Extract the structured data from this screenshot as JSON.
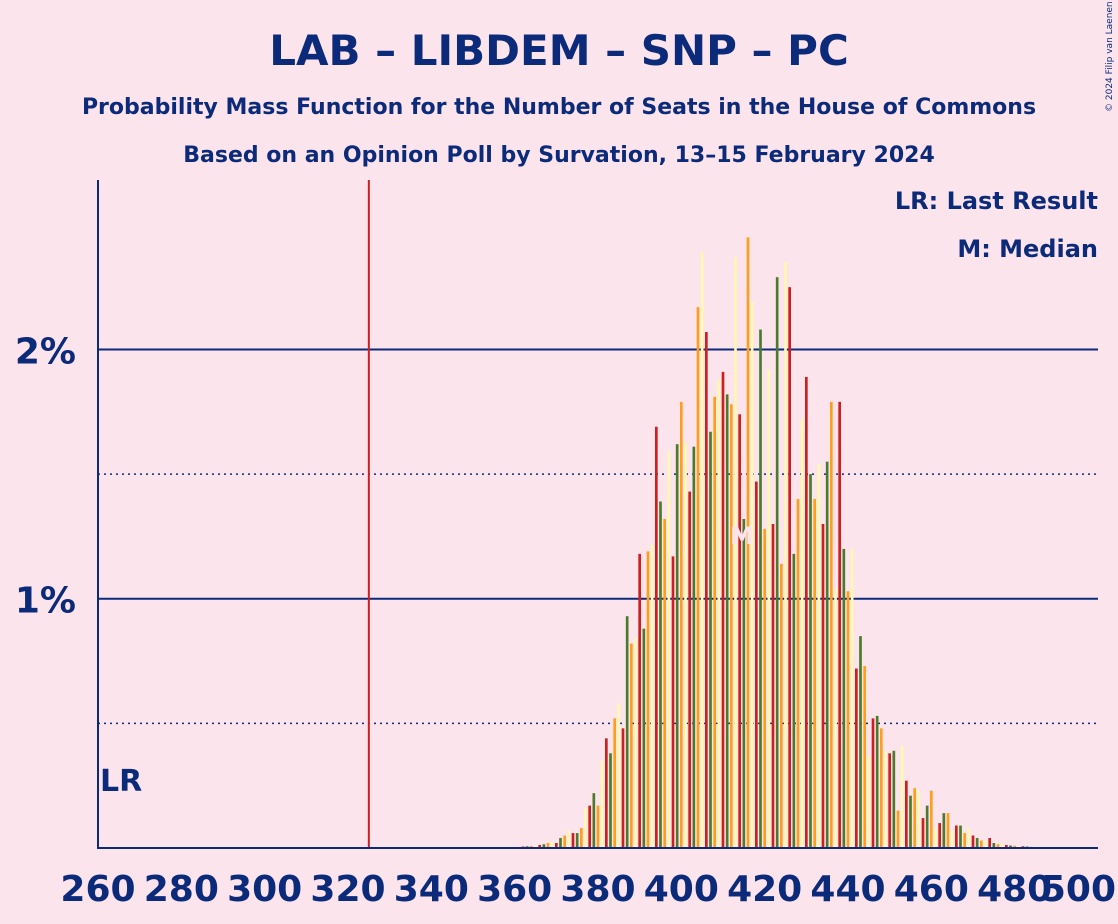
{
  "chart_data": {
    "type": "bar",
    "title": "LAB – LIBDEM – SNP – PC",
    "subtitle": "Probability Mass Function for the Number of Seats in the House of Commons",
    "subtitle2": "Based on an Opinion Poll by Survation, 13–15 February 2024",
    "copyright": "© 2024 Filip van Laenen",
    "xlim": [
      260,
      500
    ],
    "ylim": [
      0,
      2.68
    ],
    "x_ticks": [
      "260",
      "280",
      "300",
      "320",
      "340",
      "360",
      "380",
      "400",
      "420",
      "440",
      "460",
      "480",
      "500"
    ],
    "y_ticks": [
      {
        "value": 1,
        "label": "1%"
      },
      {
        "value": 2,
        "label": "2%"
      }
    ],
    "dotted_gridlines": [
      0.5,
      1.5
    ],
    "last_result": {
      "seats": 325,
      "label": "LR"
    },
    "median": {
      "seats": 416,
      "label": "M"
    },
    "legend": [
      "LR: Last Result",
      "M: Median"
    ],
    "bar_colors": [
      "#ff9e1b",
      "#fff8b0",
      "#cc1f1f",
      "#4a7a2a"
    ],
    "lr_color": "#cc1f1f",
    "grid_color": "#0b2a7a",
    "x": [
      360,
      361,
      362,
      363,
      364,
      365,
      366,
      367,
      368,
      369,
      370,
      371,
      372,
      373,
      374,
      375,
      376,
      377,
      378,
      379,
      380,
      381,
      382,
      383,
      384,
      385,
      386,
      387,
      388,
      389,
      390,
      391,
      392,
      393,
      394,
      395,
      396,
      397,
      398,
      399,
      400,
      401,
      402,
      403,
      404,
      405,
      406,
      407,
      408,
      409,
      410,
      411,
      412,
      413,
      414,
      415,
      416,
      417,
      418,
      419,
      420,
      421,
      422,
      423,
      424,
      425,
      426,
      427,
      428,
      429,
      430,
      431,
      432,
      433,
      434,
      435,
      436,
      437,
      438,
      439,
      440,
      441,
      442,
      443,
      444,
      445,
      446,
      447,
      448,
      449,
      450,
      451,
      452,
      453,
      454,
      455,
      456,
      457,
      458,
      459,
      460,
      461,
      462,
      463,
      464,
      465,
      466,
      467,
      468,
      469,
      470,
      471,
      472,
      473,
      474,
      475,
      476,
      477,
      478,
      479,
      480,
      481,
      482,
      483,
      484,
      485
    ],
    "values": [
      0.004,
      0.005,
      0.006,
      0.007,
      0.008,
      0.01,
      0.012,
      0.015,
      0.02,
      0.025,
      0.02,
      0.04,
      0.05,
      0.07,
      0.06,
      0.06,
      0.08,
      0.16,
      0.17,
      0.22,
      0.17,
      0.35,
      0.44,
      0.38,
      0.52,
      0.58,
      0.48,
      0.93,
      0.82,
      0.84,
      1.18,
      0.88,
      1.19,
      1.22,
      1.69,
      1.39,
      1.32,
      1.59,
      1.17,
      1.62,
      1.79,
      1.63,
      1.43,
      1.61,
      2.17,
      2.39,
      2.07,
      1.67,
      1.81,
      1.88,
      1.91,
      1.82,
      1.78,
      2.37,
      1.74,
      1.32,
      2.45,
      2.19,
      1.47,
      2.08,
      1.28,
      1.92,
      1.3,
      2.29,
      1.14,
      2.35,
      2.25,
      1.18,
      1.4,
      1.72,
      1.89,
      1.5,
      1.4,
      1.54,
      1.3,
      1.55,
      1.79,
      1.04,
      1.79,
      1.2,
      1.03,
      1.2,
      0.72,
      0.85,
      0.73,
      0.37,
      0.52,
      0.53,
      0.48,
      0.39,
      0.38,
      0.39,
      0.15,
      0.41,
      0.27,
      0.21,
      0.24,
      0.23,
      0.12,
      0.17,
      0.23,
      0.08,
      0.1,
      0.14,
      0.14,
      0.07,
      0.09,
      0.09,
      0.06,
      0.08,
      0.05,
      0.04,
      0.03,
      0.03,
      0.04,
      0.02,
      0.015,
      0.02,
      0.012,
      0.01,
      0.009,
      0.008,
      0.007,
      0.006,
      0.005,
      0.004
    ]
  }
}
